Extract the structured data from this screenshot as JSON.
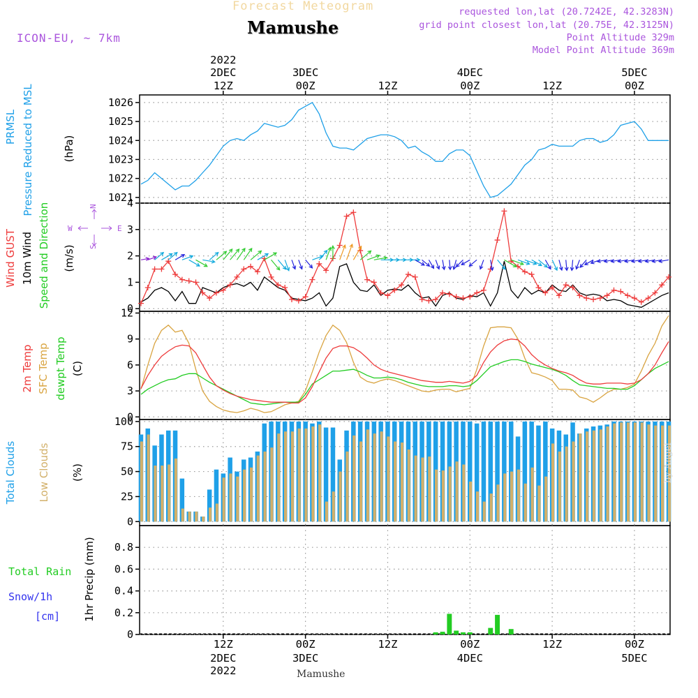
{
  "header": {
    "product": "Forecast Meteogram",
    "station": "Mamushe",
    "model": "ICON-EU, ~ 7km",
    "requested": "requested lon,lat (20.7242E, 42.3283N)",
    "grid": "grid point closest lon,lat (20.75E, 42.3125N)",
    "point_alt": "Point Altitude 329m",
    "model_alt": "Model Point Altitude 369m",
    "footer": "Mamushe",
    "credit": "by Angel"
  },
  "colors": {
    "pressure": "#1fa0e8",
    "gust": "#ee3b3b",
    "wind": "#000000",
    "t2m": "#ee3b3b",
    "sfc": "#d9a441",
    "dew": "#22cc22",
    "total_clouds": "#1fa0e8",
    "low_clouds": "#d2b06a",
    "rain": "#22cc22",
    "snow": "#3333ee",
    "purple": "#aa55dd"
  },
  "time_axis": {
    "top": [
      {
        "t": 12,
        "day": "2DEC",
        "hour": "12Z",
        "year": "2022"
      },
      {
        "t": 24,
        "day": "3DEC",
        "hour": "00Z"
      },
      {
        "t": 36,
        "day": "",
        "hour": "12Z"
      },
      {
        "t": 48,
        "day": "4DEC",
        "hour": "00Z"
      },
      {
        "t": 60,
        "day": "",
        "hour": "12Z"
      },
      {
        "t": 72,
        "day": "5DEC",
        "hour": "00Z"
      }
    ],
    "bottom": [
      {
        "t": 12,
        "hour": "12Z",
        "day": "2DEC",
        "year": "2022"
      },
      {
        "t": 24,
        "hour": "00Z",
        "day": "3DEC"
      },
      {
        "t": 36,
        "hour": "12Z",
        "day": ""
      },
      {
        "t": 48,
        "hour": "00Z",
        "day": "4DEC"
      },
      {
        "t": 60,
        "hour": "12Z",
        "day": ""
      },
      {
        "t": 72,
        "hour": "00Z",
        "day": "5DEC"
      }
    ]
  },
  "chart_data": [
    {
      "type": "line",
      "id": "pressure",
      "title": "PRMSL Pressure Reduced to MSL",
      "label_lines": [
        "PRMSL",
        "Pressure Reduced to MSL"
      ],
      "unit": "(hPa)",
      "ylim": [
        1020.7,
        1026.4
      ],
      "yticks": [
        1021,
        1022,
        1023,
        1024,
        1025,
        1026
      ],
      "x": [
        0,
        1,
        2,
        3,
        4,
        5,
        6,
        7,
        8,
        9,
        10,
        11,
        12,
        13,
        14,
        15,
        16,
        17,
        18,
        19,
        20,
        21,
        22,
        23,
        24,
        25,
        26,
        27,
        28,
        29,
        30,
        31,
        32,
        33,
        34,
        35,
        36,
        37,
        38,
        39,
        40,
        41,
        42,
        43,
        44,
        45,
        46,
        47,
        48,
        49,
        50,
        51,
        52,
        53,
        54,
        55,
        56,
        57,
        58,
        59,
        60,
        61,
        62,
        63,
        64,
        65,
        66,
        67,
        68,
        69,
        70,
        71,
        72,
        73,
        74,
        75,
        76,
        77
      ],
      "values": [
        1021.7,
        1021.9,
        1022.3,
        1022.0,
        1021.7,
        1021.4,
        1021.6,
        1021.6,
        1021.9,
        1022.3,
        1022.7,
        1023.2,
        1023.7,
        1024.0,
        1024.1,
        1024.0,
        1024.3,
        1024.5,
        1024.9,
        1024.8,
        1024.7,
        1024.8,
        1025.1,
        1025.6,
        1025.8,
        1026.0,
        1025.4,
        1024.4,
        1023.7,
        1023.6,
        1023.6,
        1023.5,
        1023.8,
        1024.1,
        1024.2,
        1024.3,
        1024.3,
        1024.2,
        1024.0,
        1023.6,
        1023.7,
        1023.4,
        1023.2,
        1022.9,
        1022.9,
        1023.3,
        1023.5,
        1023.5,
        1023.2,
        1022.4,
        1021.6,
        1021.0,
        1021.1,
        1021.4,
        1021.7,
        1022.2,
        1022.7,
        1023.0,
        1023.5,
        1023.6,
        1023.8,
        1023.7,
        1023.7,
        1023.7,
        1024.0,
        1024.1,
        1024.1,
        1023.9,
        1024.0,
        1024.3,
        1024.8,
        1024.9,
        1025.0,
        1024.6,
        1024.0,
        1024.0,
        1024.0,
        1024.0
      ]
    },
    {
      "type": "line",
      "id": "wind",
      "title": "Wind GUST / 10m Wind Speed and Direction",
      "label_lines": [
        "Wind GUST",
        "10m Wind",
        "Speed and Direction"
      ],
      "unit": "(m/s)",
      "ylim": [
        -0.1,
        4
      ],
      "yticks": [
        0,
        1,
        2,
        3,
        4
      ],
      "compass": {
        "north": "N",
        "south": "S",
        "west": "W",
        "east": "E"
      },
      "series": [
        {
          "name": "Wind GUST",
          "values": [
            0.2,
            0.8,
            1.5,
            1.5,
            1.8,
            1.3,
            1.1,
            1.05,
            1.0,
            0.6,
            0.4,
            0.6,
            0.7,
            0.9,
            1.2,
            1.5,
            1.6,
            1.4,
            1.9,
            1.2,
            0.9,
            0.8,
            0.35,
            0.3,
            0.45,
            1.1,
            1.7,
            1.45,
            1.9,
            2.4,
            3.5,
            3.65,
            2.2,
            1.1,
            1.0,
            0.6,
            0.5,
            0.7,
            0.9,
            1.3,
            1.2,
            0.35,
            0.3,
            0.35,
            0.6,
            0.55,
            0.45,
            0.4,
            0.45,
            0.6,
            0.7,
            1.5,
            2.6,
            3.7,
            1.8,
            1.6,
            1.4,
            1.3,
            0.8,
            0.6,
            0.8,
            0.5,
            0.9,
            0.8,
            0.5,
            0.4,
            0.35,
            0.4,
            0.5,
            0.7,
            0.65,
            0.5,
            0.4,
            0.25,
            0.4,
            0.6,
            0.9,
            1.2
          ]
        },
        {
          "name": "10m Wind",
          "values": [
            0.25,
            0.4,
            0.7,
            0.8,
            0.65,
            0.3,
            0.65,
            0.2,
            0.2,
            0.8,
            0.7,
            0.6,
            0.8,
            0.9,
            0.95,
            0.85,
            1.0,
            0.7,
            1.2,
            1.0,
            0.8,
            0.7,
            0.4,
            0.35,
            0.3,
            0.4,
            0.6,
            0.1,
            0.4,
            1.6,
            1.7,
            1.0,
            0.7,
            0.65,
            0.9,
            0.5,
            0.7,
            0.75,
            0.7,
            0.9,
            0.6,
            0.4,
            0.45,
            0.1,
            0.5,
            0.6,
            0.4,
            0.35,
            0.5,
            0.45,
            0.6,
            0.1,
            0.6,
            1.8,
            0.7,
            0.4,
            0.8,
            0.55,
            0.7,
            0.6,
            0.9,
            0.7,
            0.65,
            0.9,
            0.6,
            0.5,
            0.55,
            0.5,
            0.3,
            0.35,
            0.3,
            0.15,
            0.1,
            0.05,
            0.2,
            0.35,
            0.5,
            0.6
          ]
        },
        {
          "name": "Direction arrows (deg, speed m/s)",
          "dirs": [
            260,
            250,
            230,
            240,
            230,
            240,
            250,
            300,
            300,
            280,
            230,
            230,
            220,
            220,
            215,
            215,
            230,
            240,
            240,
            320,
            320,
            340,
            340,
            340,
            320,
            250,
            220,
            200,
            180,
            200,
            200,
            210,
            230,
            250,
            260,
            270,
            270,
            270,
            270,
            270,
            300,
            310,
            330,
            340,
            350,
            355,
            15,
            45,
            60,
            50,
            20,
            350,
            320,
            300,
            290,
            290,
            290,
            300,
            310,
            330,
            335,
            345,
            355,
            5,
            20,
            40,
            60,
            70,
            80,
            80,
            80,
            80,
            80,
            80,
            80,
            80,
            80,
            80
          ],
          "speeds": [
            0.3,
            0.4,
            0.7,
            0.8,
            0.7,
            0.6,
            0.7,
            0.8,
            0.9,
            0.8,
            0.7,
            0.9,
            1.0,
            1.0,
            1.0,
            1.0,
            1.0,
            0.8,
            1.0,
            0.9,
            0.8,
            0.7,
            0.5,
            0.5,
            0.6,
            0.7,
            0.8,
            0.9,
            1.0,
            1.2,
            1.3,
            1.2,
            1.0,
            0.9,
            0.9,
            0.8,
            0.7,
            0.7,
            0.7,
            0.7,
            0.6,
            0.5,
            0.5,
            0.5,
            0.5,
            0.5,
            0.5,
            0.5,
            0.5,
            0.5,
            0.5,
            0.6,
            0.8,
            1.0,
            0.9,
            0.8,
            0.8,
            0.7,
            0.7,
            0.6,
            0.7,
            0.6,
            0.6,
            0.6,
            0.5,
            0.5,
            0.5,
            0.5,
            0.5,
            0.5,
            0.5,
            0.5,
            0.5,
            0.5,
            0.5,
            0.5,
            0.5,
            0.5
          ]
        }
      ]
    },
    {
      "type": "line",
      "id": "temperature",
      "title": "2m Temp / SFC Temp / dewpt Temp",
      "label_lines": [
        "2m Temp",
        "SFC Temp",
        "dewpt Temp"
      ],
      "unit": "(C)",
      "ylim": [
        -0.3,
        12.2
      ],
      "yticks": [
        0,
        3,
        6,
        9,
        12
      ],
      "series": [
        {
          "name": "2m Temp",
          "values": [
            3.3,
            4.8,
            6.0,
            7.0,
            7.6,
            8.1,
            8.3,
            8.2,
            7.4,
            6.0,
            4.6,
            3.6,
            3.1,
            2.7,
            2.4,
            2.2,
            2.0,
            1.9,
            1.8,
            1.7,
            1.7,
            1.7,
            1.6,
            1.6,
            2.2,
            3.5,
            5.2,
            6.8,
            7.9,
            8.2,
            8.2,
            8.0,
            7.5,
            6.8,
            6.0,
            5.5,
            5.2,
            5.0,
            4.8,
            4.6,
            4.4,
            4.2,
            4.1,
            4.0,
            4.0,
            4.1,
            4.0,
            3.9,
            4.1,
            4.8,
            6.3,
            7.5,
            8.3,
            8.8,
            9.0,
            8.9,
            8.2,
            7.2,
            6.5,
            6.0,
            5.6,
            5.3,
            5.1,
            4.8,
            4.3,
            3.9,
            3.8,
            3.8,
            3.9,
            3.9,
            3.9,
            3.8,
            3.9,
            4.3,
            5.0,
            6.0,
            7.4,
            8.7
          ]
        },
        {
          "name": "SFC Temp",
          "values": [
            3.2,
            6.0,
            8.5,
            10.0,
            10.6,
            9.8,
            10.0,
            8.5,
            5.5,
            3.0,
            1.8,
            1.2,
            0.8,
            0.6,
            0.5,
            0.7,
            1.0,
            0.8,
            0.5,
            0.6,
            1.0,
            1.4,
            1.6,
            1.8,
            3.0,
            5.2,
            7.5,
            9.4,
            10.6,
            10.0,
            8.6,
            6.3,
            4.6,
            4.1,
            3.9,
            4.2,
            4.4,
            4.2,
            3.9,
            3.6,
            3.3,
            3.0,
            2.9,
            3.1,
            3.2,
            3.2,
            2.9,
            3.1,
            3.3,
            5.5,
            8.2,
            10.3,
            10.4,
            10.4,
            10.3,
            9.0,
            6.8,
            5.1,
            4.9,
            4.6,
            4.2,
            3.2,
            3.2,
            3.1,
            2.3,
            2.1,
            1.7,
            2.2,
            2.8,
            3.2,
            3.2,
            3.4,
            3.8,
            5.3,
            7.1,
            8.5,
            10.5,
            11.7
          ]
        },
        {
          "name": "dewpt Temp",
          "values": [
            2.6,
            3.2,
            3.6,
            4.0,
            4.3,
            4.4,
            4.8,
            5.0,
            5.0,
            4.5,
            4.0,
            3.6,
            3.2,
            2.8,
            2.4,
            2.0,
            1.6,
            1.5,
            1.4,
            1.5,
            1.6,
            1.7,
            1.7,
            1.7,
            2.6,
            3.8,
            4.3,
            4.8,
            5.3,
            5.3,
            5.4,
            5.5,
            5.2,
            4.8,
            4.5,
            4.5,
            4.6,
            4.5,
            4.3,
            4.0,
            3.8,
            3.6,
            3.5,
            3.5,
            3.5,
            3.6,
            3.6,
            3.5,
            3.6,
            4.2,
            5.0,
            5.8,
            6.1,
            6.4,
            6.6,
            6.6,
            6.4,
            6.1,
            5.9,
            5.7,
            5.5,
            5.2,
            4.8,
            4.2,
            3.7,
            3.6,
            3.5,
            3.4,
            3.3,
            3.3,
            3.2,
            3.2,
            3.6,
            4.3,
            5.0,
            5.6,
            6.0,
            6.4
          ]
        }
      ]
    },
    {
      "type": "bar",
      "id": "clouds",
      "title": "Total Clouds / Low Clouds",
      "label_lines": [
        "Total Clouds",
        "Low Clouds"
      ],
      "unit": "(%)",
      "ylim": [
        -4,
        102
      ],
      "yticks": [
        0,
        25,
        50,
        75,
        100
      ],
      "series": [
        {
          "name": "Total Clouds",
          "values": [
            87,
            93,
            76,
            87,
            91,
            91,
            43,
            10,
            10,
            5,
            32,
            52,
            48,
            64,
            50,
            62,
            64,
            70,
            98,
            100,
            100,
            100,
            100,
            100,
            100,
            98,
            100,
            94,
            94,
            62,
            91,
            100,
            100,
            100,
            100,
            100,
            100,
            100,
            100,
            100,
            100,
            100,
            100,
            100,
            100,
            100,
            100,
            100,
            100,
            98,
            100,
            100,
            100,
            100,
            100,
            85,
            100,
            100,
            96,
            100,
            93,
            91,
            87,
            99,
            88,
            93,
            95,
            96,
            97,
            100,
            100,
            100,
            100,
            100,
            100,
            100,
            100,
            100
          ]
        },
        {
          "name": "Low Clouds",
          "values": [
            80,
            87,
            56,
            56,
            57,
            63,
            13,
            10,
            10,
            5,
            14,
            18,
            44,
            48,
            45,
            52,
            54,
            66,
            70,
            74,
            88,
            90,
            90,
            93,
            93,
            95,
            97,
            20,
            30,
            50,
            70,
            86,
            80,
            92,
            88,
            90,
            85,
            80,
            79,
            72,
            66,
            64,
            65,
            52,
            51,
            55,
            60,
            57,
            40,
            30,
            20,
            28,
            37,
            48,
            50,
            52,
            38,
            54,
            36,
            45,
            78,
            70,
            75,
            80,
            88,
            90,
            91,
            92,
            95,
            98,
            99,
            99,
            99,
            99,
            97,
            96,
            96,
            96
          ]
        }
      ]
    },
    {
      "type": "bar",
      "id": "precip",
      "title": "1hr Precip (mm)",
      "label_lines": [
        "Total Rain",
        "Snow/1h",
        "[cm]"
      ],
      "unit": "1hr Precip (mm)",
      "ylim": [
        0,
        1.0
      ],
      "yticks": [
        0,
        0.2,
        0.4,
        0.6,
        0.8
      ],
      "series": [
        {
          "name": "Total Rain",
          "values": [
            0,
            0,
            0,
            0,
            0,
            0,
            0,
            0,
            0,
            0,
            0,
            0,
            0,
            0,
            0,
            0,
            0,
            0,
            0,
            0,
            0,
            0,
            0,
            0,
            0,
            0,
            0,
            0,
            0,
            0,
            0,
            0,
            0,
            0,
            0,
            0,
            0,
            0,
            0,
            0,
            0,
            0,
            0,
            0.02,
            0.025,
            0.19,
            0.035,
            0.02,
            0.02,
            0,
            0,
            0.06,
            0.18,
            0,
            0.05,
            0,
            0,
            0,
            0,
            0,
            0,
            0,
            0,
            0,
            0,
            0,
            0,
            0,
            0,
            0,
            0,
            0,
            0,
            0,
            0,
            0,
            0,
            0
          ]
        },
        {
          "name": "Snow/1h",
          "values": []
        }
      ]
    }
  ]
}
